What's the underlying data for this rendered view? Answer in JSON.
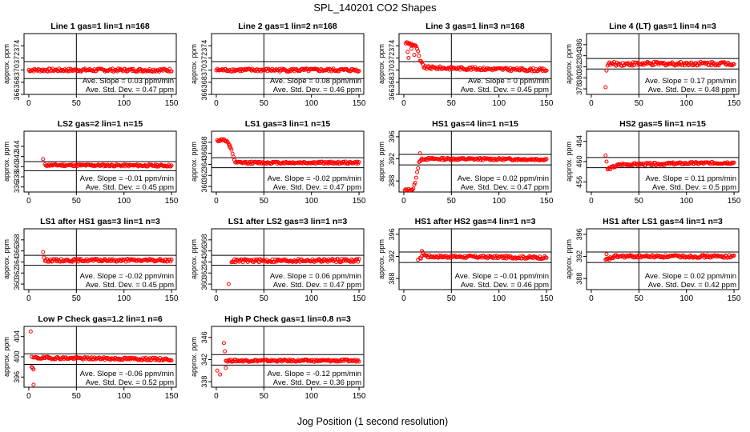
{
  "figure": {
    "title": "SPL_140201  CO2 Shapes",
    "xlabel": "Jog Position (1 second resolution)"
  },
  "colors": {
    "points": "#ff0000",
    "axes": "#000000",
    "background": "#ffffff"
  },
  "chart_data": [
    {
      "type": "scatter",
      "title": "Line 1 gas=1 lin=1 n=168",
      "ylabel": "approx. ppm",
      "xlim": [
        -5,
        155
      ],
      "ylim": [
        366,
        376
      ],
      "xticks": [
        0,
        50,
        100,
        150
      ],
      "yticks": [
        366,
        368,
        370,
        372,
        374
      ],
      "hlines": [
        371.4,
        368.6
      ],
      "vline": 50,
      "stats": [
        "Ave. Slope = 0.03  ppm/min",
        "Ave. Std. Dev. = 0.47  ppm"
      ],
      "points_desc": "flat at ~370 from x=0 to 150",
      "profile": [
        [
          0,
          370.0
        ],
        [
          150,
          370.0
        ]
      ],
      "x_start": 0,
      "x_end": 150,
      "noise": 0.25,
      "early": []
    },
    {
      "type": "scatter",
      "title": "Line 2 gas=1 lin=2 n=168",
      "ylabel": "approx. ppm",
      "xlim": [
        -5,
        155
      ],
      "ylim": [
        366,
        376
      ],
      "xticks": [
        0,
        50,
        100,
        150
      ],
      "yticks": [
        366,
        368,
        370,
        372,
        374
      ],
      "hlines": [
        371.4,
        368.6
      ],
      "vline": 50,
      "stats": [
        "Ave. Slope = 0.08  ppm/min",
        "Ave. Std. Dev. = 0.46  ppm"
      ],
      "profile": [
        [
          0,
          370.0
        ],
        [
          150,
          370.0
        ]
      ],
      "x_start": 0,
      "x_end": 150,
      "noise": 0.25,
      "early": []
    },
    {
      "type": "scatter",
      "title": "Line 3 gas=1 lin=3 n=168",
      "ylabel": "approx. ppm",
      "xlim": [
        -5,
        155
      ],
      "ylim": [
        366,
        376
      ],
      "xticks": [
        0,
        50,
        100,
        150
      ],
      "yticks": [
        366,
        368,
        370,
        372,
        374
      ],
      "hlines": [
        371.4,
        368.6
      ],
      "vline": 50,
      "stats": [
        "Ave. Slope = 0  ppm/min",
        "Ave. Std. Dev. = 0.45  ppm"
      ],
      "profile": [
        [
          2,
          374.5
        ],
        [
          10,
          374.2
        ],
        [
          14,
          373.6
        ],
        [
          17,
          371.5
        ],
        [
          22,
          370.4
        ],
        [
          150,
          370.0
        ]
      ],
      "x_start": 2,
      "x_end": 150,
      "noise": 0.25,
      "early": [
        [
          4,
          373.0
        ],
        [
          5,
          372.0
        ],
        [
          8,
          373.5
        ],
        [
          11,
          372.5
        ]
      ]
    },
    {
      "type": "scatter",
      "title": "Line 4 (LT) gas=1 lin=4 n=3",
      "ylabel": "approx. ppm",
      "xlim": [
        -5,
        155
      ],
      "ylim": [
        377,
        388
      ],
      "xticks": [
        0,
        50,
        100,
        150
      ],
      "yticks": [
        378,
        380,
        382,
        384,
        386
      ],
      "hlines": [
        383.5,
        381.6
      ],
      "vline": 50,
      "stats": [
        "Ave. Slope = 0.17  ppm/min",
        "Ave. Std. Dev. = 0.48  ppm"
      ],
      "profile": [
        [
          17,
          382.5
        ],
        [
          150,
          382.6
        ]
      ],
      "x_start": 17,
      "x_end": 150,
      "noise": 0.35,
      "early": [
        [
          15,
          378.3
        ],
        [
          16,
          381.3
        ]
      ]
    },
    {
      "type": "scatter",
      "title": "LS2 gas=2 lin=1 n=15",
      "ylabel": "approx. ppm",
      "xlim": [
        -5,
        155
      ],
      "ylim": [
        335,
        347
      ],
      "xticks": [
        0,
        50,
        100,
        150
      ],
      "yticks": [
        336,
        338,
        340,
        342,
        344
      ],
      "hlines": [
        341.0,
        339.2
      ],
      "vline": 50,
      "stats": [
        "Ave. Slope = -0.01  ppm/min",
        "Ave. Std. Dev. = 0.45  ppm"
      ],
      "profile": [
        [
          17,
          340.3
        ],
        [
          150,
          340.2
        ]
      ],
      "x_start": 17,
      "x_end": 150,
      "noise": 0.2,
      "early": [
        [
          15,
          341.5
        ]
      ]
    },
    {
      "type": "scatter",
      "title": "LS1 gas=3 lin=1 n=15",
      "ylabel": "approx. ppm",
      "xlim": [
        -5,
        155
      ],
      "ylim": [
        359,
        370
      ],
      "xticks": [
        0,
        50,
        100,
        150
      ],
      "yticks": [
        360,
        362,
        364,
        366,
        368
      ],
      "hlines": [
        365.2,
        363.4
      ],
      "vline": 50,
      "stats": [
        "Ave. Slope = -0.02  ppm/min",
        "Ave. Std. Dev. = 0.47  ppm"
      ],
      "profile": [
        [
          1,
          368.3
        ],
        [
          8,
          368.5
        ],
        [
          12,
          368.0
        ],
        [
          16,
          366.5
        ],
        [
          20,
          364.3
        ],
        [
          150,
          364.3
        ]
      ],
      "x_start": 1,
      "x_end": 150,
      "noise": 0.2,
      "early": [
        [
          14,
          367.2
        ]
      ]
    },
    {
      "type": "scatter",
      "title": "HS1 gas=4 lin=1 n=15",
      "ylabel": "approx. ppm",
      "xlim": [
        -5,
        155
      ],
      "ylim": [
        386,
        397
      ],
      "xticks": [
        0,
        50,
        100,
        150
      ],
      "yticks": [
        388,
        392,
        396
      ],
      "hlines": [
        392.8,
        390.9
      ],
      "vline": 50,
      "stats": [
        "Ave. Slope = 0.02  ppm/min",
        "Ave. Std. Dev. = 0.47  ppm"
      ],
      "profile": [
        [
          1,
          386.3
        ],
        [
          10,
          386.5
        ],
        [
          13,
          388.5
        ],
        [
          16,
          391.5
        ],
        [
          20,
          392.0
        ],
        [
          150,
          391.9
        ]
      ],
      "x_start": 1,
      "x_end": 150,
      "noise": 0.2,
      "early": [
        [
          17,
          393.0
        ]
      ]
    },
    {
      "type": "scatter",
      "title": "HS2 gas=5 lin=1 n=15",
      "ylabel": "approx. ppm",
      "xlim": [
        -5,
        155
      ],
      "ylim": [
        454,
        466
      ],
      "xticks": [
        0,
        50,
        100,
        150
      ],
      "yticks": [
        456,
        460,
        464
      ],
      "hlines": [
        460.8,
        458.8
      ],
      "vline": 50,
      "stats": [
        "Ave. Slope = 0.11  ppm/min",
        "Ave. Std. Dev. = 0.5  ppm"
      ],
      "profile": [
        [
          17,
          458.5
        ],
        [
          30,
          459.4
        ],
        [
          150,
          459.8
        ]
      ],
      "x_start": 17,
      "x_end": 150,
      "noise": 0.25,
      "early": [
        [
          15,
          461.2
        ],
        [
          16,
          460.0
        ]
      ]
    },
    {
      "type": "scatter",
      "title": "LS1 after HS1 gas=3 lin=1 n=3",
      "ylabel": "approx. ppm",
      "xlim": [
        -5,
        155
      ],
      "ylim": [
        359,
        370
      ],
      "xticks": [
        0,
        50,
        100,
        150
      ],
      "yticks": [
        360,
        362,
        364,
        366,
        368
      ],
      "hlines": [
        365.2,
        363.4
      ],
      "vline": 50,
      "stats": [
        "Ave. Slope = -0.02  ppm/min",
        "Ave. Std. Dev. = 0.45  ppm"
      ],
      "profile": [
        [
          17,
          364.3
        ],
        [
          150,
          364.3
        ]
      ],
      "x_start": 17,
      "x_end": 150,
      "noise": 0.25,
      "early": [
        [
          15,
          365.8
        ],
        [
          16,
          364.8
        ]
      ]
    },
    {
      "type": "scatter",
      "title": "LS1 after LS2 gas=3 lin=1 n=3",
      "ylabel": "approx. ppm",
      "xlim": [
        -5,
        155
      ],
      "ylim": [
        359,
        370
      ],
      "xticks": [
        0,
        50,
        100,
        150
      ],
      "yticks": [
        360,
        362,
        364,
        366,
        368
      ],
      "hlines": [
        365.2,
        363.4
      ],
      "vline": 50,
      "stats": [
        "Ave. Slope = 0.06  ppm/min",
        "Ave. Std. Dev. = 0.47  ppm"
      ],
      "profile": [
        [
          16,
          364.2
        ],
        [
          150,
          364.3
        ]
      ],
      "x_start": 16,
      "x_end": 150,
      "noise": 0.3,
      "early": [
        [
          13,
          360.0
        ]
      ]
    },
    {
      "type": "scatter",
      "title": "HS1 after HS2 gas=4 lin=1 n=3",
      "ylabel": "approx. ppm",
      "xlim": [
        -5,
        155
      ],
      "ylim": [
        386,
        397
      ],
      "xticks": [
        0,
        50,
        100,
        150
      ],
      "yticks": [
        388,
        392,
        396
      ],
      "hlines": [
        392.8,
        390.9
      ],
      "vline": 50,
      "stats": [
        "Ave. Slope = -0.01  ppm/min",
        "Ave. Std. Dev. = 0.46  ppm"
      ],
      "profile": [
        [
          17,
          391.5
        ],
        [
          20,
          392.5
        ],
        [
          25,
          392.0
        ],
        [
          150,
          391.8
        ]
      ],
      "x_start": 17,
      "x_end": 150,
      "noise": 0.25,
      "early": [
        [
          15,
          391.4
        ],
        [
          19,
          393.0
        ]
      ]
    },
    {
      "type": "scatter",
      "title": "HS1 after LS1 gas=4 lin=1 n=3",
      "ylabel": "approx. ppm",
      "xlim": [
        -5,
        155
      ],
      "ylim": [
        386,
        397
      ],
      "xticks": [
        0,
        50,
        100,
        150
      ],
      "yticks": [
        388,
        392,
        396
      ],
      "hlines": [
        392.8,
        390.9
      ],
      "vline": 50,
      "stats": [
        "Ave. Slope = 0.02  ppm/min",
        "Ave. Std. Dev. = 0.42  ppm"
      ],
      "profile": [
        [
          15,
          391.3
        ],
        [
          25,
          392.0
        ],
        [
          150,
          392.0
        ]
      ],
      "x_start": 15,
      "x_end": 150,
      "noise": 0.25,
      "early": [
        [
          16,
          392.4
        ]
      ]
    },
    {
      "type": "scatter",
      "title": "Low P Check gas=1.2 lin=1 n=6",
      "ylabel": "approx. ppm",
      "xlim": [
        -5,
        155
      ],
      "ylim": [
        394,
        406
      ],
      "xticks": [
        0,
        50,
        100,
        150
      ],
      "yticks": [
        396,
        400,
        404
      ],
      "hlines": [
        400.6,
        398.5
      ],
      "vline": 50,
      "stats": [
        "Ave. Slope = -0.06  ppm/min",
        "Ave. Std. Dev. = 0.52  ppm"
      ],
      "profile": [
        [
          5,
          399.8
        ],
        [
          150,
          399.5
        ]
      ],
      "x_start": 5,
      "x_end": 150,
      "noise": 0.25,
      "early": [
        [
          2,
          405.0
        ],
        [
          3,
          400.0
        ],
        [
          3,
          398.0
        ],
        [
          4,
          397.8
        ],
        [
          5,
          397.5
        ],
        [
          5,
          394.5
        ]
      ]
    },
    {
      "type": "scatter",
      "title": "High P Check gas=1 lin=0.8 n=3",
      "ylabel": "approx. ppm",
      "xlim": [
        -5,
        155
      ],
      "ylim": [
        337,
        348
      ],
      "xticks": [
        0,
        50,
        100,
        150
      ],
      "yticks": [
        338,
        342,
        346
      ],
      "hlines": [
        342.9,
        341.0
      ],
      "vline": 50,
      "stats": [
        "Ave. Slope = -0.12  ppm/min",
        "Ave. Std. Dev. = 0.36  ppm"
      ],
      "profile": [
        [
          10,
          341.8
        ],
        [
          150,
          341.8
        ]
      ],
      "x_start": 10,
      "x_end": 150,
      "noise": 0.2,
      "early": [
        [
          1,
          340.0
        ],
        [
          4,
          339.3
        ],
        [
          8,
          345.0
        ],
        [
          9,
          343.5
        ],
        [
          10,
          340.5
        ]
      ]
    }
  ]
}
